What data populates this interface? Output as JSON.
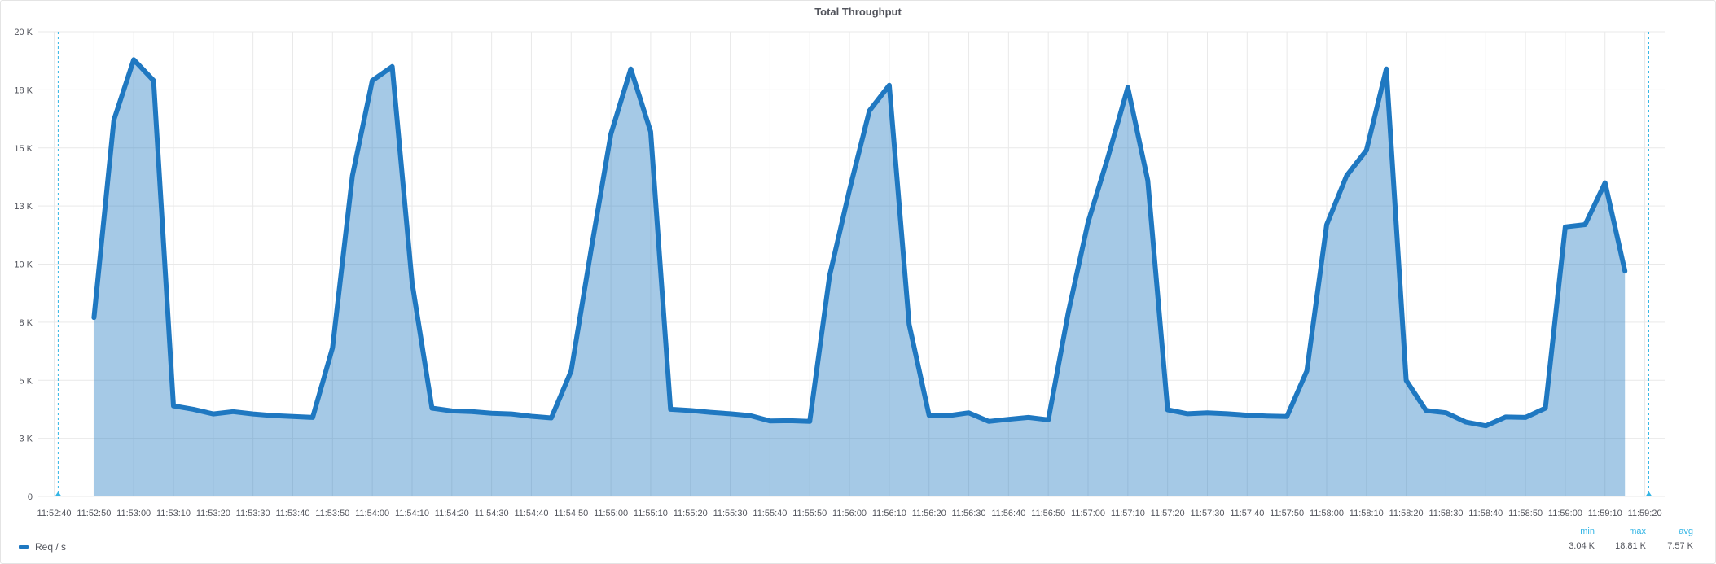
{
  "panel": {
    "title": "Total Throughput"
  },
  "legend": {
    "series_name": "Req / s",
    "color": "#1f78c1",
    "headers": {
      "min": "min",
      "max": "max",
      "avg": "avg"
    },
    "values": {
      "min": "3.04 K",
      "max": "18.81 K",
      "avg": "7.57 K"
    }
  },
  "chart_data": {
    "type": "area",
    "title": "Total Throughput",
    "xlabel": "",
    "ylabel": "",
    "ylim": [
      0,
      20000
    ],
    "xlim": [
      "11:52:36",
      "11:59:25"
    ],
    "y_ticks": [
      {
        "value": 0,
        "label": "0"
      },
      {
        "value": 2500,
        "label": "3 K"
      },
      {
        "value": 5000,
        "label": "5 K"
      },
      {
        "value": 7500,
        "label": "8 K"
      },
      {
        "value": 10000,
        "label": "10 K"
      },
      {
        "value": 12500,
        "label": "13 K"
      },
      {
        "value": 15000,
        "label": "15 K"
      },
      {
        "value": 17500,
        "label": "18 K"
      },
      {
        "value": 20000,
        "label": "20 K"
      }
    ],
    "x_ticks": [
      "11:52:40",
      "11:52:50",
      "11:53:00",
      "11:53:10",
      "11:53:20",
      "11:53:30",
      "11:53:40",
      "11:53:50",
      "11:54:00",
      "11:54:10",
      "11:54:20",
      "11:54:30",
      "11:54:40",
      "11:54:50",
      "11:55:00",
      "11:55:10",
      "11:55:20",
      "11:55:30",
      "11:55:40",
      "11:55:50",
      "11:56:00",
      "11:56:10",
      "11:56:20",
      "11:56:30",
      "11:56:40",
      "11:56:50",
      "11:57:00",
      "11:57:10",
      "11:57:20",
      "11:57:30",
      "11:57:40",
      "11:57:50",
      "11:58:00",
      "11:58:10",
      "11:58:20",
      "11:58:30",
      "11:58:40",
      "11:58:50",
      "11:59:00",
      "11:59:10",
      "11:59:20"
    ],
    "time_range_markers": [
      "11:52:41",
      "11:59:21"
    ],
    "grid": true,
    "legend_position": "bottom-left",
    "series": [
      {
        "name": "Req / s",
        "color": "#1f78c1",
        "fill": true,
        "points": [
          [
            "11:52:50",
            7700
          ],
          [
            "11:52:55",
            16200
          ],
          [
            "11:53:00",
            18800
          ],
          [
            "11:53:05",
            17900
          ],
          [
            "11:53:10",
            3900
          ],
          [
            "11:53:15",
            3750
          ],
          [
            "11:53:20",
            3550
          ],
          [
            "11:53:25",
            3650
          ],
          [
            "11:53:30",
            3550
          ],
          [
            "11:53:35",
            3480
          ],
          [
            "11:53:40",
            3440
          ],
          [
            "11:53:45",
            3400
          ],
          [
            "11:53:50",
            6400
          ],
          [
            "11:53:55",
            13800
          ],
          [
            "11:54:00",
            17900
          ],
          [
            "11:54:05",
            18500
          ],
          [
            "11:54:10",
            9200
          ],
          [
            "11:54:15",
            3800
          ],
          [
            "11:54:20",
            3680
          ],
          [
            "11:54:25",
            3650
          ],
          [
            "11:54:30",
            3580
          ],
          [
            "11:54:35",
            3550
          ],
          [
            "11:54:40",
            3450
          ],
          [
            "11:54:45",
            3380
          ],
          [
            "11:54:50",
            5400
          ],
          [
            "11:54:55",
            10600
          ],
          [
            "11:55:00",
            15600
          ],
          [
            "11:55:05",
            18400
          ],
          [
            "11:55:10",
            15700
          ],
          [
            "11:55:15",
            3750
          ],
          [
            "11:55:20",
            3700
          ],
          [
            "11:55:25",
            3620
          ],
          [
            "11:55:30",
            3560
          ],
          [
            "11:55:35",
            3480
          ],
          [
            "11:55:40",
            3250
          ],
          [
            "11:55:45",
            3260
          ],
          [
            "11:55:50",
            3230
          ],
          [
            "11:55:55",
            9500
          ],
          [
            "11:56:00",
            13200
          ],
          [
            "11:56:05",
            16600
          ],
          [
            "11:56:10",
            17700
          ],
          [
            "11:56:15",
            7400
          ],
          [
            "11:56:20",
            3500
          ],
          [
            "11:56:25",
            3480
          ],
          [
            "11:56:30",
            3600
          ],
          [
            "11:56:35",
            3230
          ],
          [
            "11:56:40",
            3320
          ],
          [
            "11:56:45",
            3400
          ],
          [
            "11:56:50",
            3300
          ],
          [
            "11:56:55",
            7900
          ],
          [
            "11:57:00",
            11800
          ],
          [
            "11:57:05",
            14600
          ],
          [
            "11:57:10",
            17600
          ],
          [
            "11:57:15",
            13600
          ],
          [
            "11:57:20",
            3730
          ],
          [
            "11:57:25",
            3560
          ],
          [
            "11:57:30",
            3600
          ],
          [
            "11:57:35",
            3560
          ],
          [
            "11:57:40",
            3500
          ],
          [
            "11:57:45",
            3460
          ],
          [
            "11:57:50",
            3440
          ],
          [
            "11:57:55",
            5400
          ],
          [
            "11:58:00",
            11700
          ],
          [
            "11:58:05",
            13800
          ],
          [
            "11:58:10",
            14900
          ],
          [
            "11:58:15",
            18400
          ],
          [
            "11:58:20",
            5000
          ],
          [
            "11:58:25",
            3700
          ],
          [
            "11:58:30",
            3600
          ],
          [
            "11:58:35",
            3200
          ],
          [
            "11:58:40",
            3040
          ],
          [
            "11:58:45",
            3420
          ],
          [
            "11:58:50",
            3400
          ],
          [
            "11:58:55",
            3800
          ],
          [
            "11:59:00",
            11600
          ],
          [
            "11:59:05",
            11700
          ],
          [
            "11:59:10",
            13500
          ],
          [
            "11:59:15",
            9700
          ]
        ]
      }
    ]
  }
}
